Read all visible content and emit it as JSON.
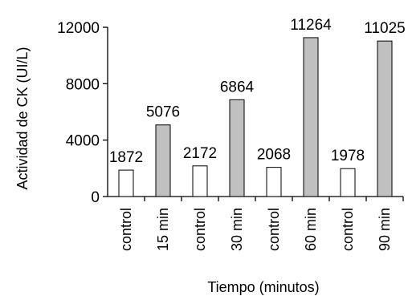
{
  "chart_data": {
    "type": "bar",
    "title": "",
    "xlabel": "Tiempo (minutos)",
    "ylabel": "Actividad de  CK (UI/L)",
    "ylim": [
      0,
      12000
    ],
    "yticks": [
      0,
      4000,
      8000,
      12000
    ],
    "grid": false,
    "legend": "none",
    "categories": [
      "control",
      "15 min",
      "control",
      "30 min",
      "control",
      "60 min",
      "control",
      "90 min"
    ],
    "values": [
      1872,
      5076,
      2172,
      6864,
      2068,
      11264,
      1978,
      11025
    ],
    "data_labels": [
      "1872",
      "5076",
      "2172",
      "6864",
      "2068",
      "11264",
      "1978",
      "11025"
    ],
    "bar_colors": [
      "#ffffff",
      "#c0c0c0",
      "#ffffff",
      "#c0c0c0",
      "#ffffff",
      "#c0c0c0",
      "#ffffff",
      "#c0c0c0"
    ],
    "bar_stroke": "#000000"
  }
}
